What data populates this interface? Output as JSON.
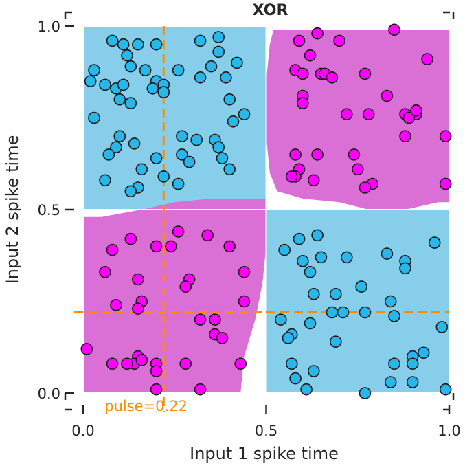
{
  "chart_data": {
    "type": "scatter",
    "title": "XOR",
    "xlabel": "Input 1 spike time",
    "ylabel": "Input 2 spike time",
    "xlim": [
      0,
      1
    ],
    "ylim": [
      0,
      1
    ],
    "xticks": [
      "0.0",
      "0.5",
      "1.0"
    ],
    "yticks": [
      "0.0",
      "0.5",
      "1.0"
    ],
    "grid": true,
    "class_colors": {
      "class_0": "#87ceeb",
      "class_1": "#da70d6"
    },
    "point_colors": {
      "class_0": "#29b6e8",
      "class_1": "#ff00ff"
    },
    "pulse": {
      "value": 0.22,
      "label": "pulse=0.22",
      "color": "#ff8c00"
    },
    "regions": [
      {
        "class": 0,
        "polygon": [
          [
            0,
            1
          ],
          [
            0.5,
            1
          ],
          [
            0.5,
            0.5
          ],
          [
            0,
            0.5
          ]
        ]
      },
      {
        "class": 0,
        "polygon": [
          [
            0.5,
            0.5
          ],
          [
            1,
            0.5
          ],
          [
            1,
            0
          ],
          [
            0.5,
            0
          ]
        ]
      },
      {
        "class": 1,
        "polygon": [
          [
            0.52,
            0.99
          ],
          [
            1,
            0.99
          ],
          [
            1,
            0.52
          ],
          [
            0.97,
            0.52
          ],
          [
            0.88,
            0.5
          ],
          [
            0.78,
            0.5
          ],
          [
            0.7,
            0.52
          ],
          [
            0.6,
            0.53
          ],
          [
            0.53,
            0.55
          ],
          [
            0.51,
            0.6
          ],
          [
            0.5,
            0.7
          ],
          [
            0.5,
            0.85
          ],
          [
            0.51,
            0.95
          ]
        ]
      },
      {
        "class": 1,
        "polygon": [
          [
            0,
            0.48
          ],
          [
            0.05,
            0.48
          ],
          [
            0.16,
            0.5
          ],
          [
            0.25,
            0.52
          ],
          [
            0.35,
            0.53
          ],
          [
            0.44,
            0.53
          ],
          [
            0.5,
            0.53
          ],
          [
            0.5,
            0.4
          ],
          [
            0.49,
            0.3
          ],
          [
            0.47,
            0.2
          ],
          [
            0.44,
            0.1
          ],
          [
            0.43,
            0
          ],
          [
            0,
            0
          ]
        ]
      }
    ],
    "series": [
      {
        "class": 0,
        "points": [
          [
            0.08,
            0.96
          ],
          [
            0.11,
            0.95
          ],
          [
            0.15,
            0.95
          ],
          [
            0.2,
            0.95
          ],
          [
            0.32,
            0.96
          ],
          [
            0.37,
            0.97
          ],
          [
            0.12,
            0.92
          ],
          [
            0.37,
            0.93
          ],
          [
            0.03,
            0.88
          ],
          [
            0.13,
            0.89
          ],
          [
            0.17,
            0.88
          ],
          [
            0.26,
            0.88
          ],
          [
            0.35,
            0.89
          ],
          [
            0.42,
            0.9
          ],
          [
            0.02,
            0.85
          ],
          [
            0.2,
            0.85
          ],
          [
            0.22,
            0.84
          ],
          [
            0.32,
            0.86
          ],
          [
            0.39,
            0.86
          ],
          [
            0.06,
            0.84
          ],
          [
            0.09,
            0.83
          ],
          [
            0.11,
            0.84
          ],
          [
            0.19,
            0.83
          ],
          [
            0.22,
            0.82
          ],
          [
            0.1,
            0.8
          ],
          [
            0.13,
            0.79
          ],
          [
            0.4,
            0.8
          ],
          [
            0.03,
            0.75
          ],
          [
            0.41,
            0.74
          ],
          [
            0.44,
            0.76
          ],
          [
            0.1,
            0.7
          ],
          [
            0.27,
            0.7
          ],
          [
            0.31,
            0.69
          ],
          [
            0.36,
            0.69
          ],
          [
            0.09,
            0.67
          ],
          [
            0.14,
            0.68
          ],
          [
            0.37,
            0.67
          ],
          [
            0.27,
            0.65
          ],
          [
            0.07,
            0.65
          ],
          [
            0.2,
            0.64
          ],
          [
            0.29,
            0.63
          ],
          [
            0.38,
            0.64
          ],
          [
            0.16,
            0.61
          ],
          [
            0.4,
            0.61
          ],
          [
            0.22,
            0.59
          ],
          [
            0.06,
            0.58
          ],
          [
            0.26,
            0.57
          ],
          [
            0.15,
            0.56
          ],
          [
            0.13,
            0.55
          ],
          [
            0.55,
            0.39
          ],
          [
            0.59,
            0.42
          ],
          [
            0.64,
            0.43
          ],
          [
            0.6,
            0.36
          ],
          [
            0.65,
            0.37
          ],
          [
            0.72,
            0.37
          ],
          [
            0.83,
            0.38
          ],
          [
            0.88,
            0.36
          ],
          [
            0.96,
            0.41
          ],
          [
            0.62,
            0.33
          ],
          [
            0.88,
            0.34
          ],
          [
            0.76,
            0.29
          ],
          [
            0.63,
            0.27
          ],
          [
            0.69,
            0.27
          ],
          [
            0.84,
            0.25
          ],
          [
            0.68,
            0.22
          ],
          [
            0.71,
            0.22
          ],
          [
            0.77,
            0.22
          ],
          [
            0.85,
            0.21
          ],
          [
            0.54,
            0.2
          ],
          [
            0.62,
            0.19
          ],
          [
            0.98,
            0.18
          ],
          [
            0.57,
            0.16
          ],
          [
            0.56,
            0.15
          ],
          [
            0.69,
            0.14
          ],
          [
            0.9,
            0.1
          ],
          [
            0.93,
            0.11
          ],
          [
            0.57,
            0.08
          ],
          [
            0.85,
            0.08
          ],
          [
            0.9,
            0.08
          ],
          [
            0.63,
            0.06
          ],
          [
            0.58,
            0.04
          ],
          [
            0.84,
            0.03
          ],
          [
            0.9,
            0.03
          ],
          [
            0.61,
            0.01
          ],
          [
            0.77,
            0.0
          ],
          [
            0.99,
            0.01
          ]
        ]
      },
      {
        "class": 1,
        "points": [
          [
            0.64,
            0.98
          ],
          [
            0.85,
            0.99
          ],
          [
            0.59,
            0.96
          ],
          [
            0.7,
            0.96
          ],
          [
            0.62,
            0.92
          ],
          [
            0.94,
            0.91
          ],
          [
            0.58,
            0.88
          ],
          [
            0.6,
            0.87
          ],
          [
            0.65,
            0.87
          ],
          [
            0.66,
            0.87
          ],
          [
            0.77,
            0.87
          ],
          [
            0.68,
            0.86
          ],
          [
            0.6,
            0.81
          ],
          [
            0.83,
            0.81
          ],
          [
            0.6,
            0.79
          ],
          [
            0.72,
            0.76
          ],
          [
            0.78,
            0.76
          ],
          [
            0.88,
            0.76
          ],
          [
            0.91,
            0.76
          ],
          [
            0.89,
            0.75
          ],
          [
            0.91,
            0.77
          ],
          [
            0.88,
            0.7
          ],
          [
            0.99,
            0.7
          ],
          [
            0.58,
            0.65
          ],
          [
            0.64,
            0.65
          ],
          [
            0.74,
            0.65
          ],
          [
            0.59,
            0.61
          ],
          [
            0.75,
            0.61
          ],
          [
            0.58,
            0.59
          ],
          [
            0.63,
            0.58
          ],
          [
            0.57,
            0.59
          ],
          [
            0.79,
            0.57
          ],
          [
            0.77,
            0.56
          ],
          [
            0.99,
            0.57
          ],
          [
            0.26,
            0.44
          ],
          [
            0.34,
            0.43
          ],
          [
            0.13,
            0.42
          ],
          [
            0.2,
            0.4
          ],
          [
            0.24,
            0.4
          ],
          [
            0.08,
            0.39
          ],
          [
            0.4,
            0.4
          ],
          [
            0.06,
            0.33
          ],
          [
            0.15,
            0.31
          ],
          [
            0.29,
            0.31
          ],
          [
            0.44,
            0.33
          ],
          [
            0.28,
            0.29
          ],
          [
            0.09,
            0.24
          ],
          [
            0.16,
            0.25
          ],
          [
            0.44,
            0.25
          ],
          [
            0.15,
            0.23
          ],
          [
            0.32,
            0.2
          ],
          [
            0.36,
            0.2
          ],
          [
            0.36,
            0.16
          ],
          [
            0.38,
            0.15
          ],
          [
            0.01,
            0.12
          ],
          [
            0.15,
            0.1
          ],
          [
            0.08,
            0.08
          ],
          [
            0.14,
            0.08
          ],
          [
            0.16,
            0.09
          ],
          [
            0.2,
            0.08
          ],
          [
            0.28,
            0.08
          ],
          [
            0.43,
            0.08
          ],
          [
            0.12,
            0.08
          ],
          [
            0.2,
            0.06
          ],
          [
            0.2,
            0.01
          ],
          [
            0.32,
            0.01
          ]
        ]
      }
    ]
  }
}
